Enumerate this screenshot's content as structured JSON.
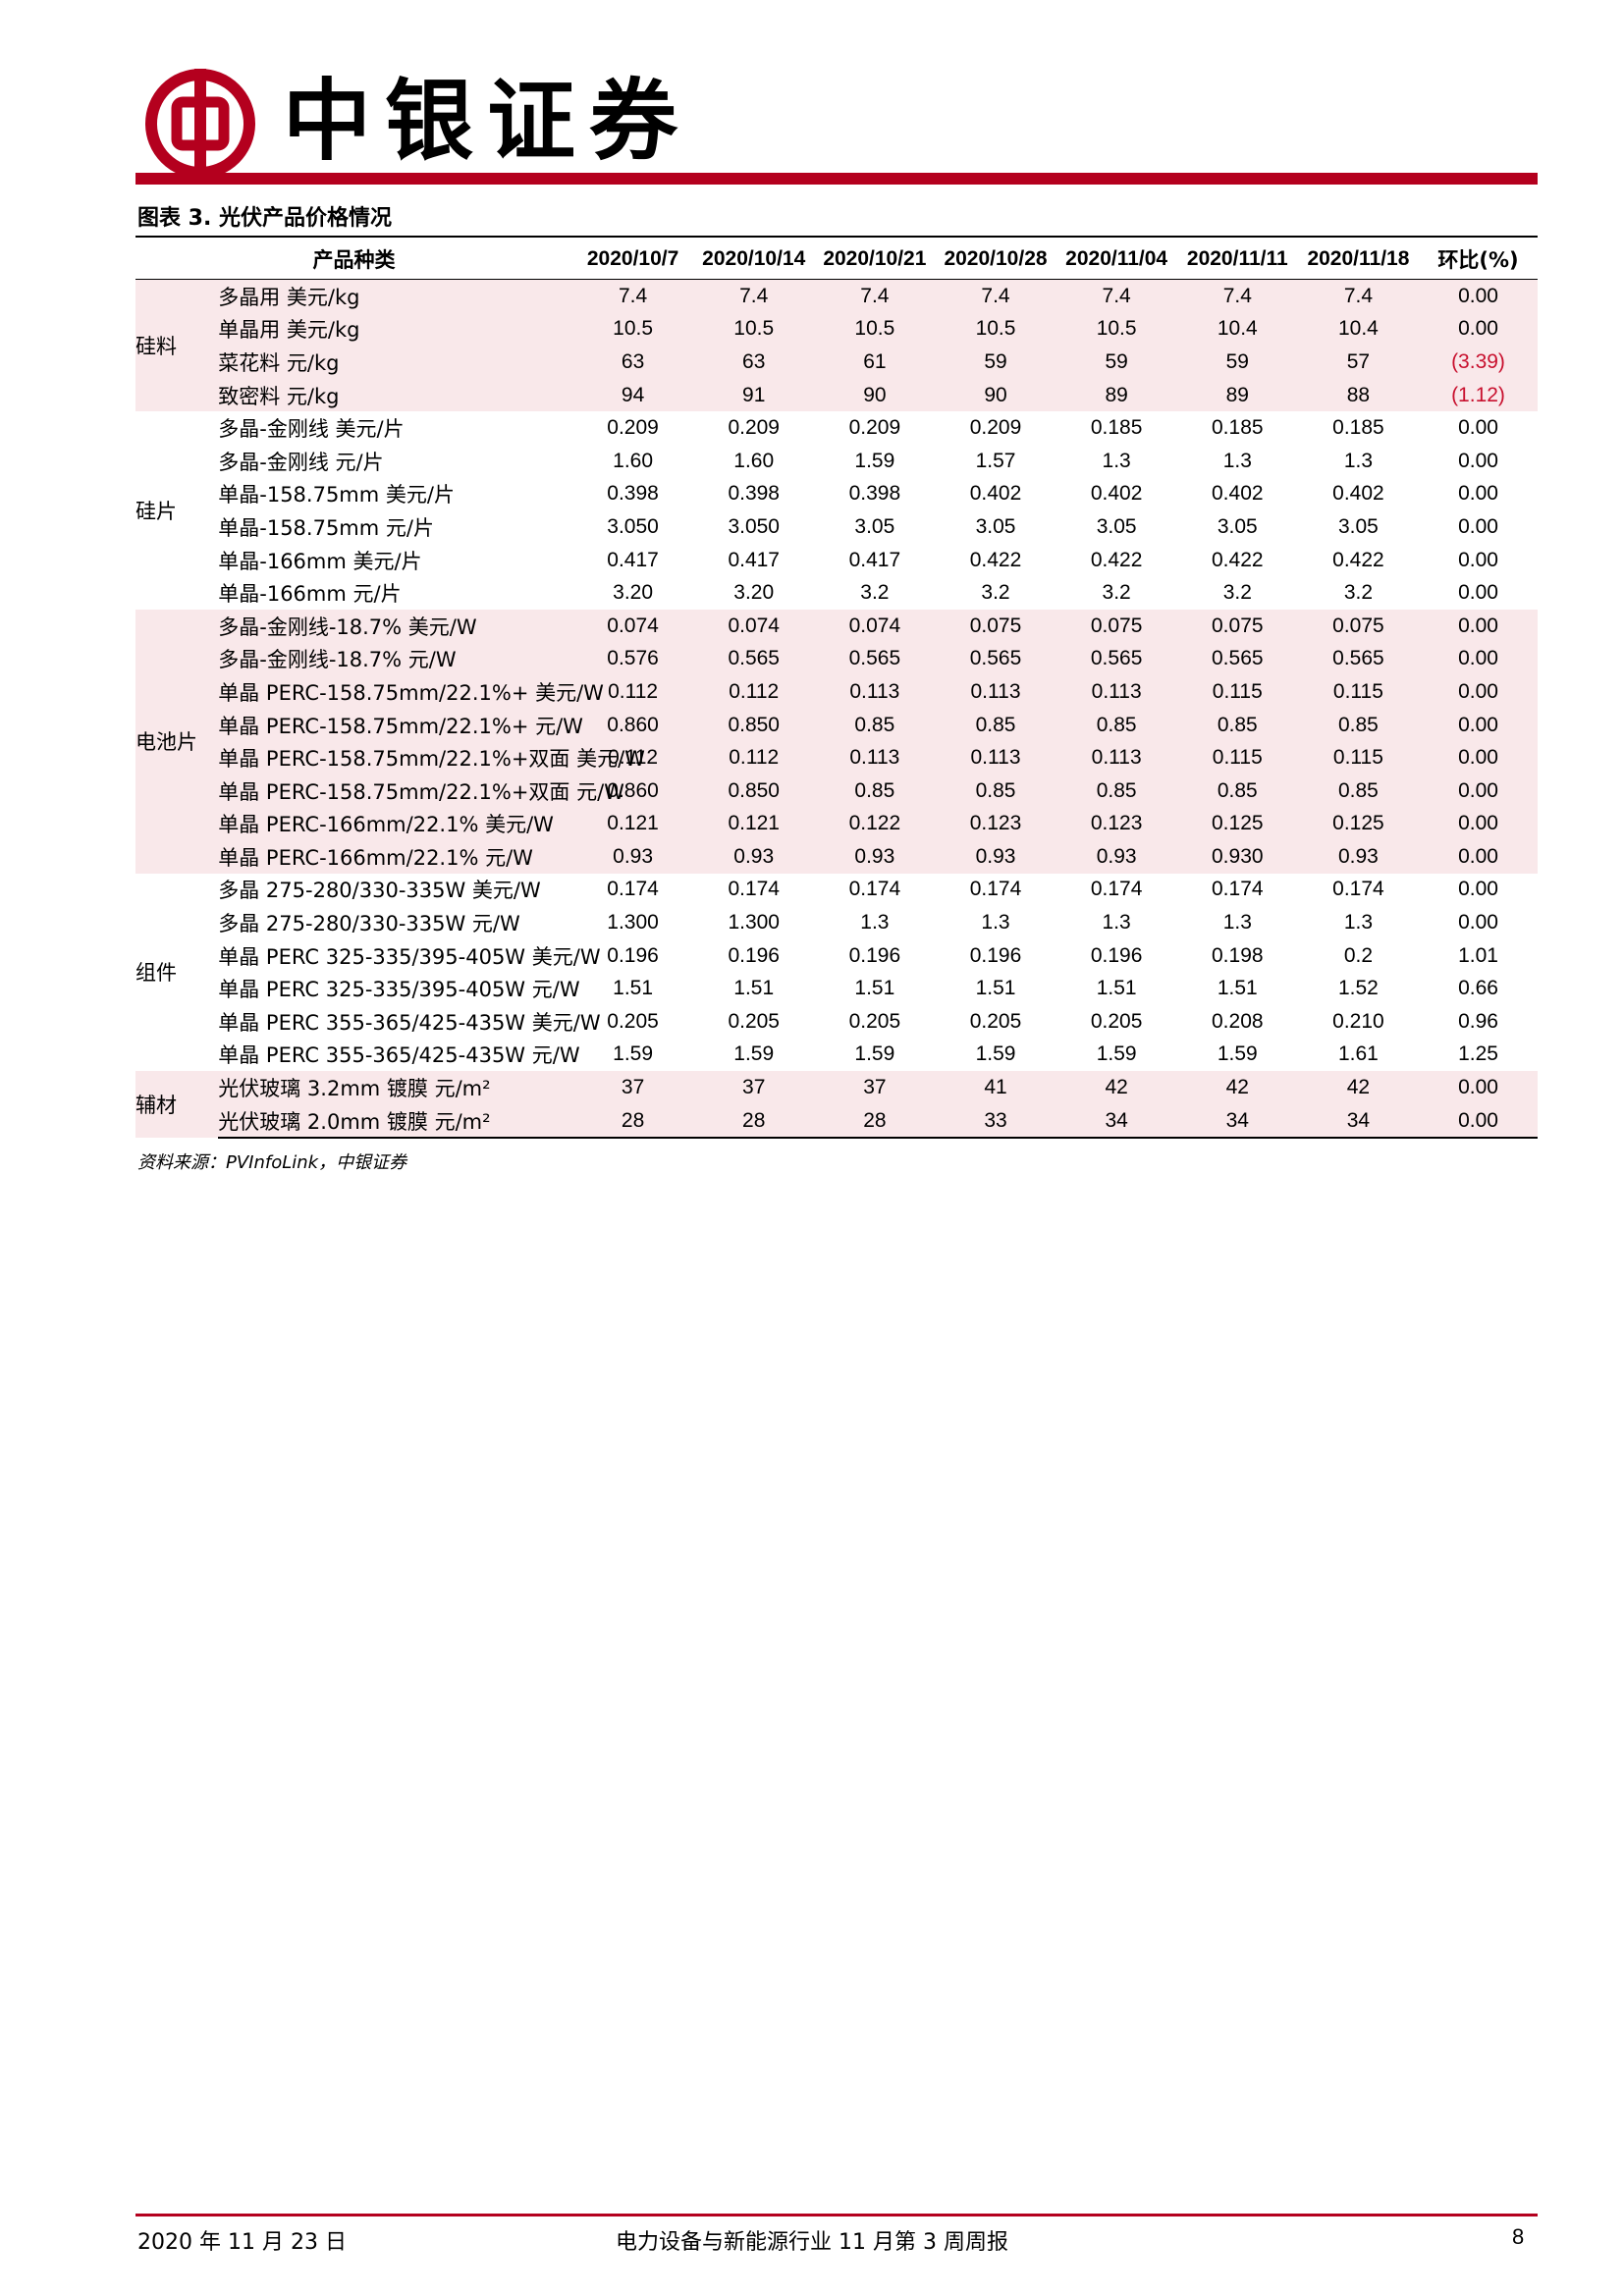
{
  "header": {
    "brand_name": "中银证券",
    "logo_color": "#b4001e"
  },
  "table": {
    "caption": "图表 3. 光伏产品价格情况",
    "category_header": "产品种类",
    "change_header": "环比(%)",
    "dates": [
      "2020/10/7",
      "2020/10/14",
      "2020/10/21",
      "2020/10/28",
      "2020/11/04",
      "2020/11/11",
      "2020/11/18"
    ],
    "groups": [
      {
        "name": "硅料",
        "rows": [
          {
            "item": "多晶用 美元/kg",
            "values": [
              "7.4",
              "7.4",
              "7.4",
              "7.4",
              "7.4",
              "7.4",
              "7.4"
            ],
            "change": "0.00"
          },
          {
            "item": "单晶用 美元/kg",
            "values": [
              "10.5",
              "10.5",
              "10.5",
              "10.5",
              "10.5",
              "10.4",
              "10.4"
            ],
            "change": "0.00"
          },
          {
            "item": "菜花料 元/kg",
            "values": [
              "63",
              "63",
              "61",
              "59",
              "59",
              "59",
              "57"
            ],
            "change": "(3.39)"
          },
          {
            "item": "致密料 元/kg",
            "values": [
              "94",
              "91",
              "90",
              "90",
              "89",
              "89",
              "88"
            ],
            "change": "(1.12)"
          }
        ]
      },
      {
        "name": "硅片",
        "rows": [
          {
            "item": "多晶-金刚线 美元/片",
            "values": [
              "0.209",
              "0.209",
              "0.209",
              "0.209",
              "0.185",
              "0.185",
              "0.185"
            ],
            "change": "0.00"
          },
          {
            "item": "多晶-金刚线 元/片",
            "values": [
              "1.60",
              "1.60",
              "1.59",
              "1.57",
              "1.3",
              "1.3",
              "1.3"
            ],
            "change": "0.00"
          },
          {
            "item": "单晶-158.75mm 美元/片",
            "values": [
              "0.398",
              "0.398",
              "0.398",
              "0.402",
              "0.402",
              "0.402",
              "0.402"
            ],
            "change": "0.00"
          },
          {
            "item": "单晶-158.75mm 元/片",
            "values": [
              "3.050",
              "3.050",
              "3.05",
              "3.05",
              "3.05",
              "3.05",
              "3.05"
            ],
            "change": "0.00"
          },
          {
            "item": "单晶-166mm 美元/片",
            "values": [
              "0.417",
              "0.417",
              "0.417",
              "0.422",
              "0.422",
              "0.422",
              "0.422"
            ],
            "change": "0.00"
          },
          {
            "item": "单晶-166mm 元/片",
            "values": [
              "3.20",
              "3.20",
              "3.2",
              "3.2",
              "3.2",
              "3.2",
              "3.2"
            ],
            "change": "0.00"
          }
        ]
      },
      {
        "name": "电池片",
        "rows": [
          {
            "item": "多晶-金刚线-18.7% 美元/W",
            "values": [
              "0.074",
              "0.074",
              "0.074",
              "0.075",
              "0.075",
              "0.075",
              "0.075"
            ],
            "change": "0.00"
          },
          {
            "item": "多晶-金刚线-18.7% 元/W",
            "values": [
              "0.576",
              "0.565",
              "0.565",
              "0.565",
              "0.565",
              "0.565",
              "0.565"
            ],
            "change": "0.00"
          },
          {
            "item": "单晶 PERC-158.75mm/22.1%+ 美元/W",
            "values": [
              "0.112",
              "0.112",
              "0.113",
              "0.113",
              "0.113",
              "0.115",
              "0.115"
            ],
            "change": "0.00"
          },
          {
            "item": "单晶 PERC-158.75mm/22.1%+ 元/W",
            "values": [
              "0.860",
              "0.850",
              "0.85",
              "0.85",
              "0.85",
              "0.85",
              "0.85"
            ],
            "change": "0.00"
          },
          {
            "item": "单晶 PERC-158.75mm/22.1%+双面 美元/W",
            "values": [
              "0.112",
              "0.112",
              "0.113",
              "0.113",
              "0.113",
              "0.115",
              "0.115"
            ],
            "change": "0.00"
          },
          {
            "item": "单晶 PERC-158.75mm/22.1%+双面 元/W",
            "values": [
              "0.860",
              "0.850",
              "0.85",
              "0.85",
              "0.85",
              "0.85",
              "0.85"
            ],
            "change": "0.00"
          },
          {
            "item": "单晶 PERC-166mm/22.1% 美元/W",
            "values": [
              "0.121",
              "0.121",
              "0.122",
              "0.123",
              "0.123",
              "0.125",
              "0.125"
            ],
            "change": "0.00"
          },
          {
            "item": "单晶 PERC-166mm/22.1% 元/W",
            "values": [
              "0.93",
              "0.93",
              "0.93",
              "0.93",
              "0.93",
              "0.930",
              "0.93"
            ],
            "change": "0.00"
          }
        ]
      },
      {
        "name": "组件",
        "rows": [
          {
            "item": "多晶 275-280/330-335W 美元/W",
            "values": [
              "0.174",
              "0.174",
              "0.174",
              "0.174",
              "0.174",
              "0.174",
              "0.174"
            ],
            "change": "0.00"
          },
          {
            "item": "多晶 275-280/330-335W 元/W",
            "values": [
              "1.300",
              "1.300",
              "1.3",
              "1.3",
              "1.3",
              "1.3",
              "1.3"
            ],
            "change": "0.00"
          },
          {
            "item": "单晶 PERC 325-335/395-405W 美元/W",
            "values": [
              "0.196",
              "0.196",
              "0.196",
              "0.196",
              "0.196",
              "0.198",
              "0.2"
            ],
            "change": "1.01"
          },
          {
            "item": "单晶 PERC 325-335/395-405W 元/W",
            "values": [
              "1.51",
              "1.51",
              "1.51",
              "1.51",
              "1.51",
              "1.51",
              "1.52"
            ],
            "change": "0.66"
          },
          {
            "item": "单晶 PERC 355-365/425-435W 美元/W",
            "values": [
              "0.205",
              "0.205",
              "0.205",
              "0.205",
              "0.205",
              "0.208",
              "0.210"
            ],
            "change": "0.96"
          },
          {
            "item": "单晶 PERC 355-365/425-435W 元/W",
            "values": [
              "1.59",
              "1.59",
              "1.59",
              "1.59",
              "1.59",
              "1.59",
              "1.61"
            ],
            "change": "1.25"
          }
        ]
      },
      {
        "name": "辅材",
        "rows": [
          {
            "item": "光伏玻璃 3.2mm 镀膜 元/m²",
            "values": [
              "37",
              "37",
              "37",
              "41",
              "42",
              "42",
              "42"
            ],
            "change": "0.00"
          },
          {
            "item": "光伏玻璃 2.0mm 镀膜 元/m²",
            "values": [
              "28",
              "28",
              "28",
              "33",
              "34",
              "34",
              "34"
            ],
            "change": "0.00"
          }
        ]
      }
    ],
    "source": "资料来源：PVInfoLink，中银证券"
  },
  "footer": {
    "date": "2020 年 11 月 23 日",
    "title": "电力设备与新能源行业 11 月第 3 周周报",
    "page": "8"
  },
  "colors": {
    "brand_red": "#b4001e",
    "shade": "#f9e8ea",
    "negative": "#c8102e"
  }
}
